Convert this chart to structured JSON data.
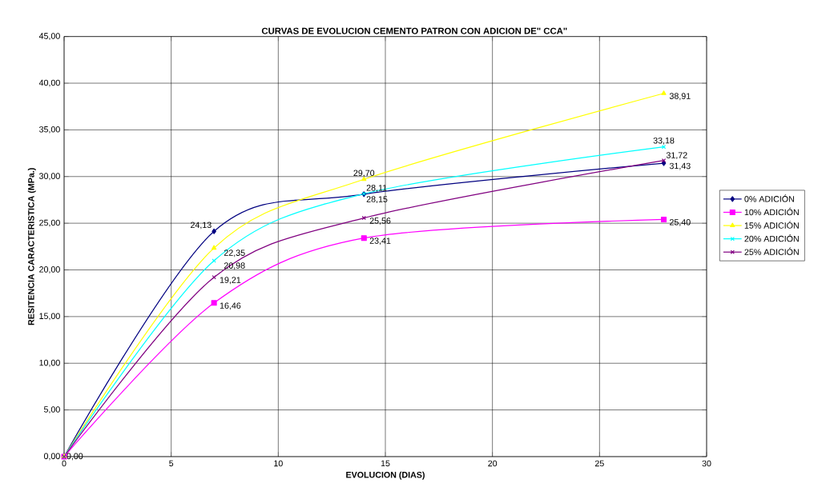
{
  "chart_data": {
    "type": "line",
    "title": "CURVAS DE EVOLUCION CEMENTO PATRON CON ADICION DE\" CCA\"",
    "xlabel": "EVOLUCION (DIAS)",
    "ylabel": "RESITENCIA CARACTERISTICA (MPa.)",
    "x": [
      0,
      7,
      14,
      28
    ],
    "xlim": [
      0,
      30
    ],
    "xticks": [
      0,
      5,
      10,
      15,
      20,
      25,
      30
    ],
    "ylim": [
      0,
      45
    ],
    "yticks": [
      {
        "value": 0,
        "label": "0,00"
      },
      {
        "value": 5,
        "label": "5,00"
      },
      {
        "value": 10,
        "label": "10,00"
      },
      {
        "value": 15,
        "label": "15,00"
      },
      {
        "value": 20,
        "label": "20,00"
      },
      {
        "value": 25,
        "label": "25,00"
      },
      {
        "value": 30,
        "label": "30,00"
      },
      {
        "value": 35,
        "label": "35,00"
      },
      {
        "value": 40,
        "label": "40,00"
      },
      {
        "value": 45,
        "label": "45,00"
      }
    ],
    "grid": true,
    "legend": "right",
    "series": [
      {
        "name": "0% ADICIÓN",
        "color": "#000080",
        "marker": "diamond",
        "values": [
          0,
          24.13,
          28.11,
          31.43
        ],
        "value_labels": [
          "0,00",
          "24,13",
          "28,11",
          "31,43"
        ]
      },
      {
        "name": "10% ADICIÓN",
        "color": "#ff00ff",
        "marker": "square",
        "values": [
          0,
          16.46,
          23.41,
          25.4
        ],
        "value_labels": [
          null,
          "16,46",
          "23,41",
          "25,40"
        ]
      },
      {
        "name": "15% ADICIÓN",
        "color": "#ffff00",
        "marker": "triangle",
        "values": [
          0,
          22.35,
          29.7,
          38.91
        ],
        "value_labels": [
          null,
          "22,35",
          "29,70",
          "38,91"
        ]
      },
      {
        "name": "20% ADICIÓN",
        "color": "#00ffff",
        "marker": "cross",
        "values": [
          0,
          20.98,
          28.15,
          33.18
        ],
        "value_labels": [
          null,
          "20,98",
          "28,15",
          "33,18"
        ]
      },
      {
        "name": "25% ADICIÓN",
        "color": "#800080",
        "marker": "cross",
        "values": [
          0,
          19.21,
          25.56,
          31.72
        ],
        "value_labels": [
          null,
          "19,21",
          "25,56",
          "31,72"
        ]
      }
    ]
  }
}
